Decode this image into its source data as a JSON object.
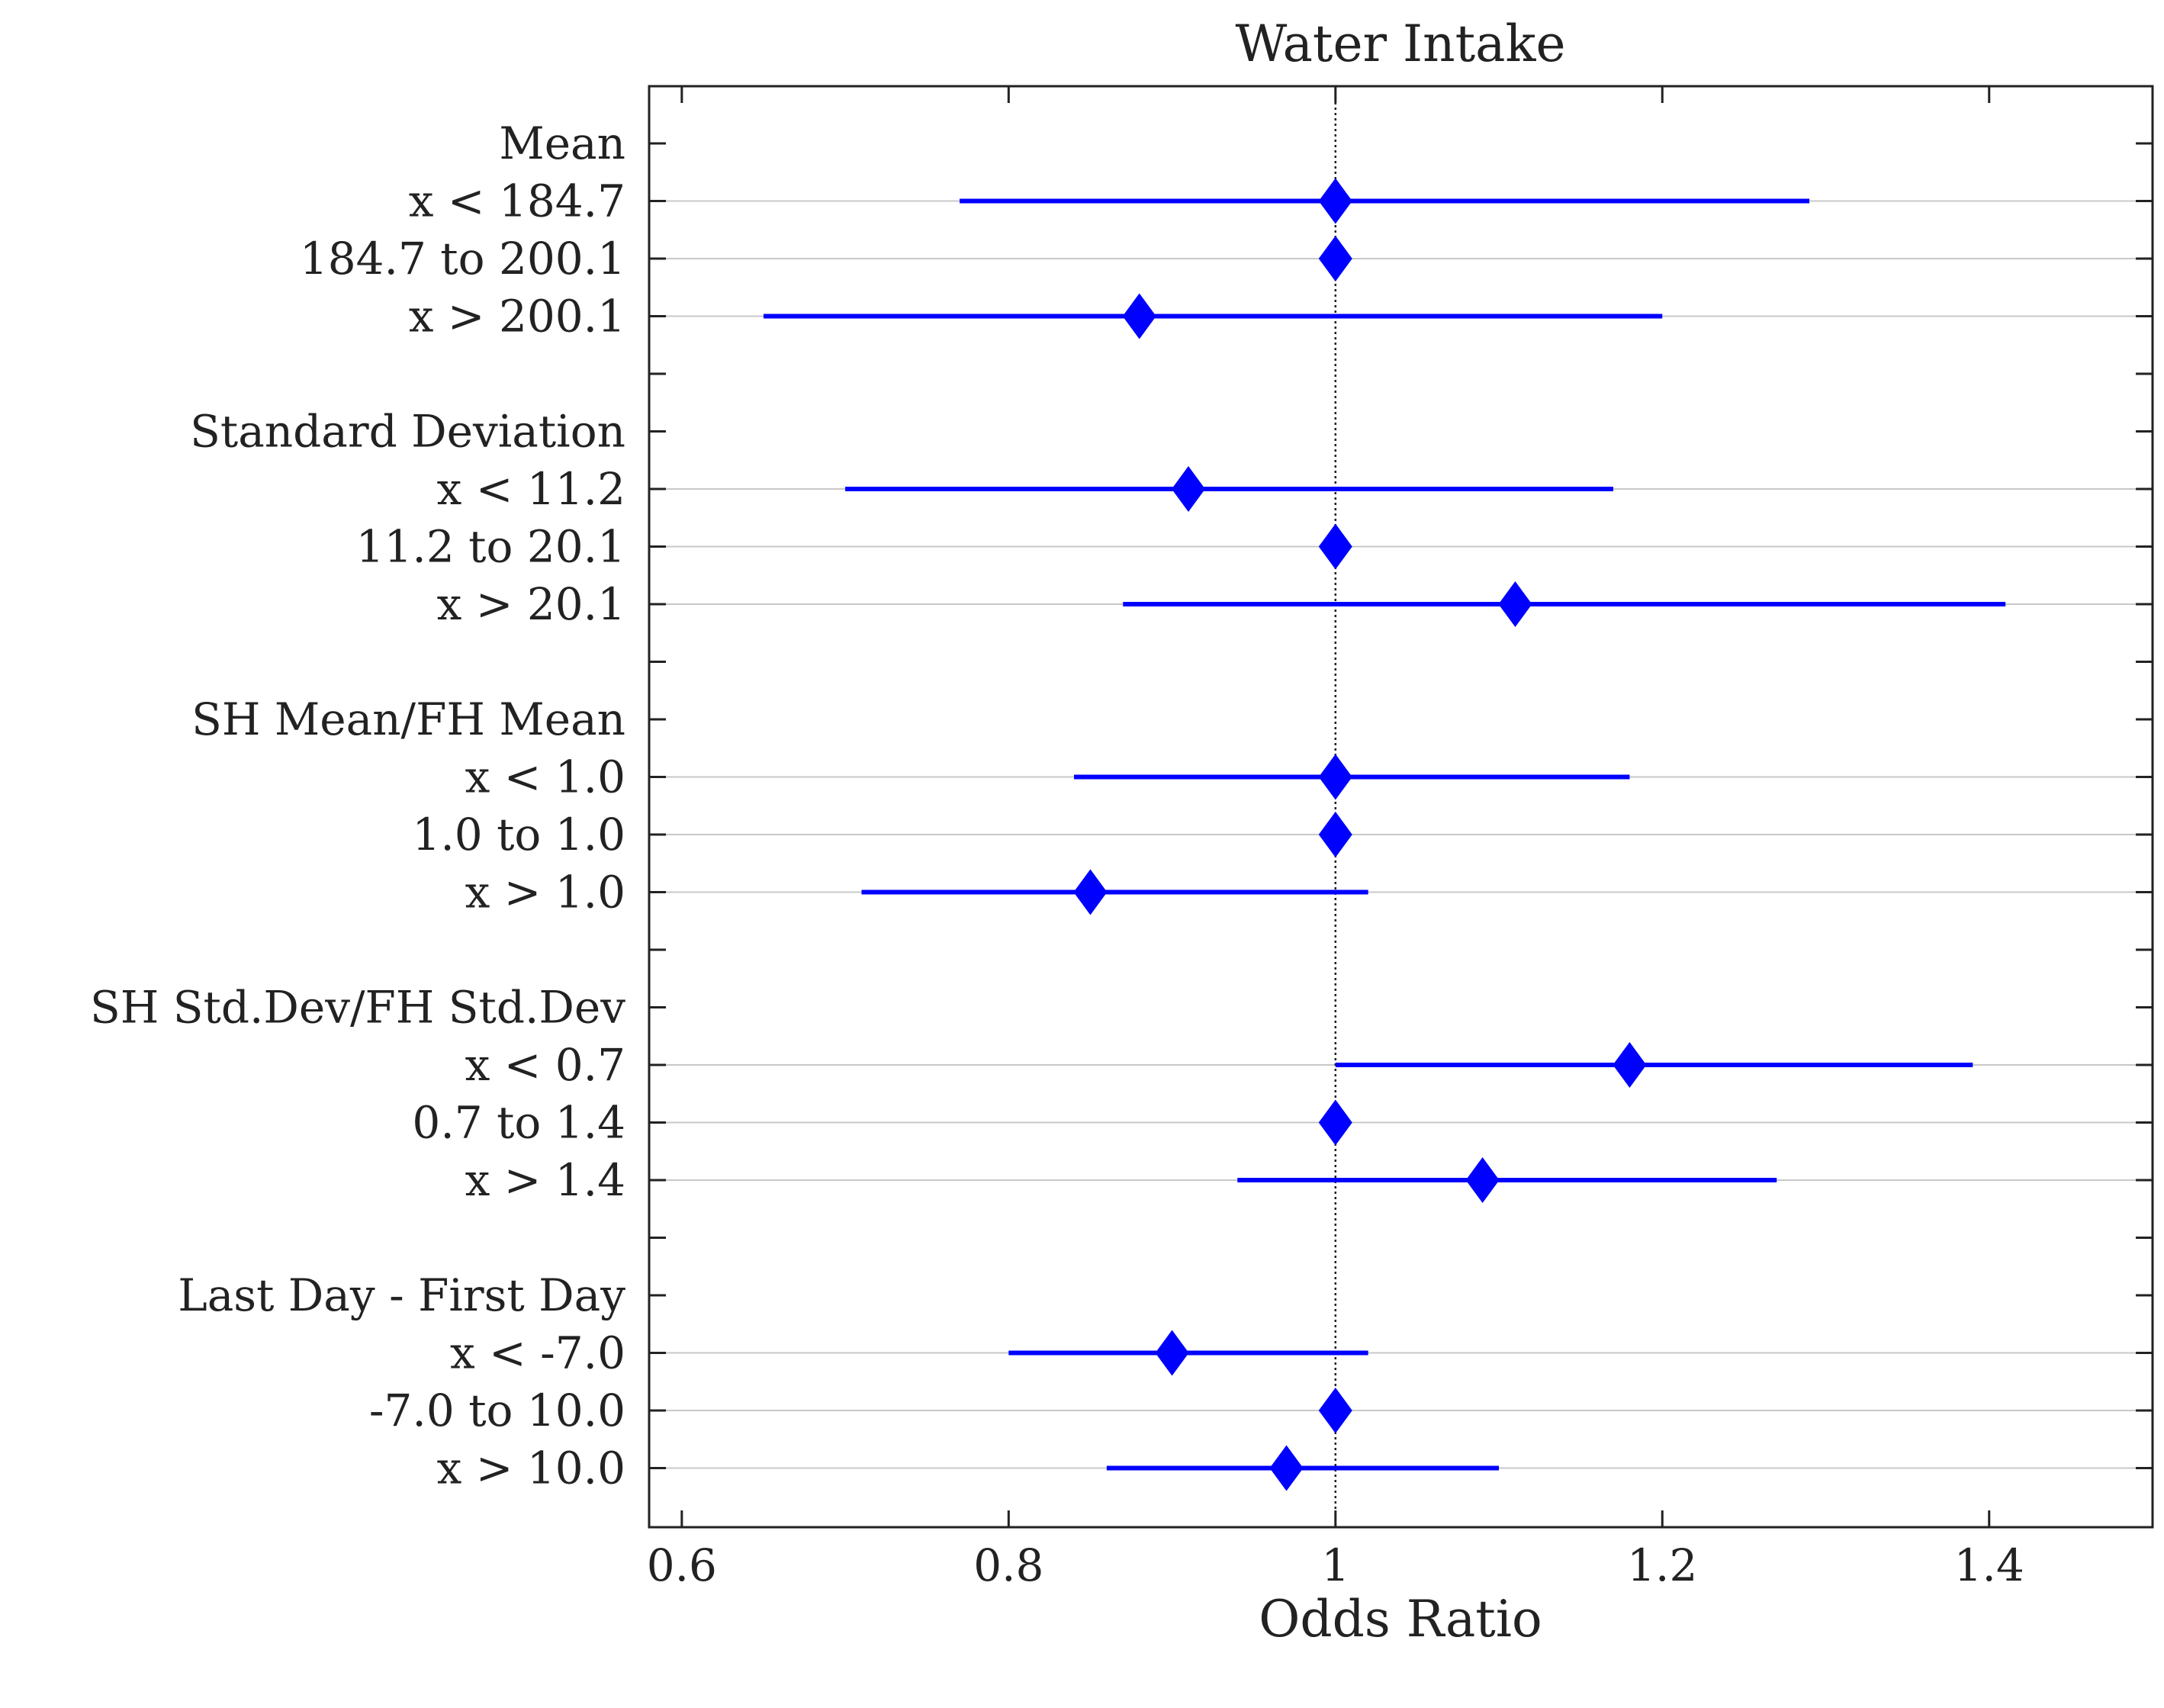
{
  "chart_data": {
    "type": "forest",
    "title": "Water Intake",
    "xlabel": "Odds Ratio",
    "xlim": [
      0.58,
      1.5
    ],
    "xticks": [
      0.6,
      0.8,
      1.0,
      1.2,
      1.4
    ],
    "xtick_labels": [
      "0.6",
      "0.8",
      "1",
      "1.2",
      "1.4"
    ],
    "reference_line": 1.0,
    "marker_color": "#0000ff",
    "grid_color": "#c8c8c8",
    "rows": [
      {
        "label": "Mean",
        "header": true
      },
      {
        "label": "x < 184.7",
        "or": 1.0,
        "lo": 0.77,
        "hi": 1.29
      },
      {
        "label": "184.7 to 200.1",
        "or": 1.0,
        "lo": null,
        "hi": null
      },
      {
        "label": "x > 200.1",
        "or": 0.88,
        "lo": 0.65,
        "hi": 1.2
      },
      {
        "label": "",
        "spacer": true
      },
      {
        "label": "Standard Deviation",
        "header": true
      },
      {
        "label": "x < 11.2",
        "or": 0.91,
        "lo": 0.7,
        "hi": 1.17
      },
      {
        "label": "11.2 to 20.1",
        "or": 1.0,
        "lo": null,
        "hi": null
      },
      {
        "label": "x > 20.1",
        "or": 1.11,
        "lo": 0.87,
        "hi": 1.41
      },
      {
        "label": "",
        "spacer": true
      },
      {
        "label": "SH Mean/FH Mean",
        "header": true
      },
      {
        "label": "x < 1.0",
        "or": 1.0,
        "lo": 0.84,
        "hi": 1.18
      },
      {
        "label": "1.0 to 1.0",
        "or": 1.0,
        "lo": null,
        "hi": null
      },
      {
        "label": "x > 1.0",
        "or": 0.85,
        "lo": 0.71,
        "hi": 1.02
      },
      {
        "label": "",
        "spacer": true
      },
      {
        "label": "SH Std.Dev/FH Std.Dev",
        "header": true
      },
      {
        "label": "x < 0.7",
        "or": 1.18,
        "lo": 1.0,
        "hi": 1.39
      },
      {
        "label": "0.7 to 1.4",
        "or": 1.0,
        "lo": null,
        "hi": null
      },
      {
        "label": "x > 1.4",
        "or": 1.09,
        "lo": 0.94,
        "hi": 1.27
      },
      {
        "label": "",
        "spacer": true
      },
      {
        "label": "Last Day - First Day",
        "header": true
      },
      {
        "label": "x < -7.0",
        "or": 0.9,
        "lo": 0.8,
        "hi": 1.02
      },
      {
        "label": "-7.0 to 10.0",
        "or": 1.0,
        "lo": null,
        "hi": null
      },
      {
        "label": "x > 10.0",
        "or": 0.97,
        "lo": 0.86,
        "hi": 1.1
      }
    ]
  }
}
